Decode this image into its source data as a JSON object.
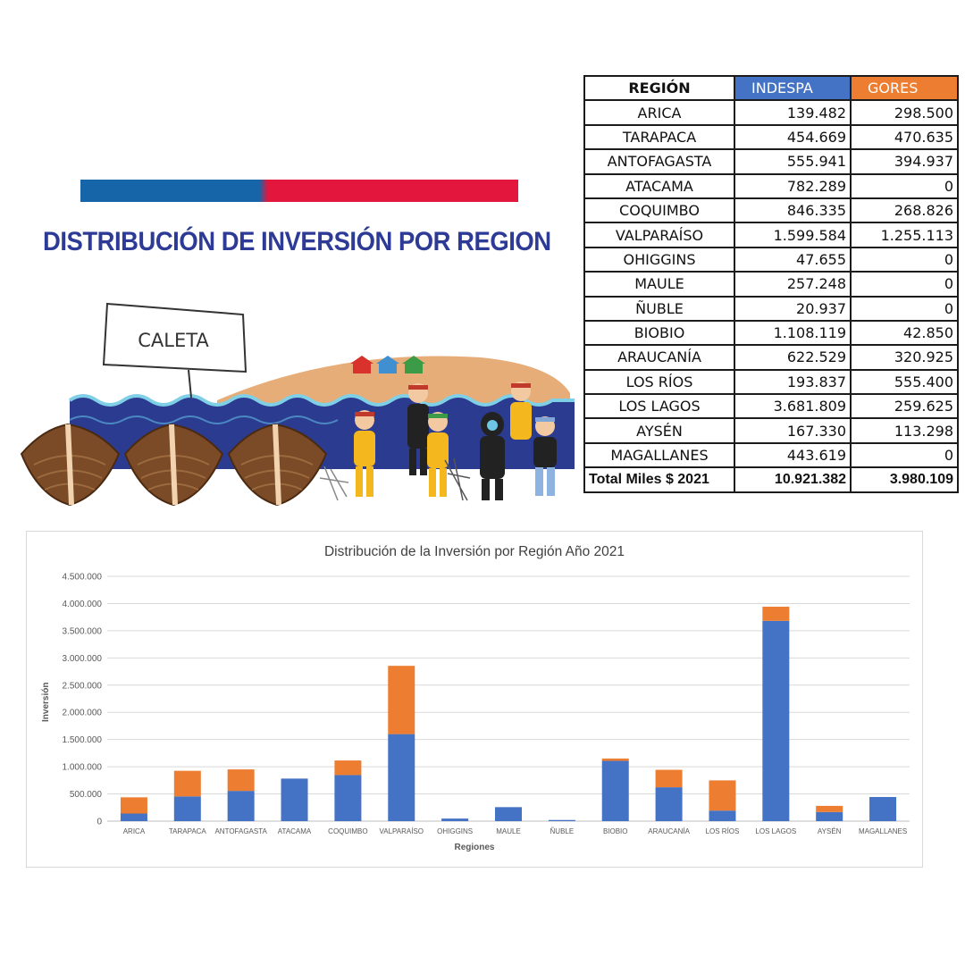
{
  "colors": {
    "flag_blue": "#1565a8",
    "flag_red": "#e3173e",
    "title_blue": "#2e3b96",
    "indespa_header": "#4472c4",
    "gores_header": "#ed7d31",
    "bar_blue": "#4472c4",
    "bar_orange": "#ed7d31"
  },
  "headline": "DISTRIBUCIÓN DE INVERSIÓN POR REGION",
  "illustration": {
    "sign_text": "CALETA"
  },
  "table": {
    "headers": {
      "region": "REGIÓN",
      "indespa": "INDESPA",
      "gores": "GORES"
    },
    "rows": [
      {
        "region": "ARICA",
        "indespa": "139.482",
        "gores": "298.500"
      },
      {
        "region": "TARAPACA",
        "indespa": "454.669",
        "gores": "470.635"
      },
      {
        "region": "ANTOFAGASTA",
        "indespa": "555.941",
        "gores": "394.937"
      },
      {
        "region": "ATACAMA",
        "indespa": "782.289",
        "gores": "0"
      },
      {
        "region": "COQUIMBO",
        "indespa": "846.335",
        "gores": "268.826"
      },
      {
        "region": "VALPARAÍSO",
        "indespa": "1.599.584",
        "gores": "1.255.113"
      },
      {
        "region": "OHIGGINS",
        "indespa": "47.655",
        "gores": "0"
      },
      {
        "region": "MAULE",
        "indespa": "257.248",
        "gores": "0"
      },
      {
        "region": "ÑUBLE",
        "indespa": "20.937",
        "gores": "0"
      },
      {
        "region": "BIOBIO",
        "indespa": "1.108.119",
        "gores": "42.850"
      },
      {
        "region": "ARAUCANÍA",
        "indespa": "622.529",
        "gores": "320.925"
      },
      {
        "region": "LOS RÍOS",
        "indespa": "193.837",
        "gores": "555.400"
      },
      {
        "region": "LOS LAGOS",
        "indespa": "3.681.809",
        "gores": "259.625"
      },
      {
        "region": "AYSÉN",
        "indespa": "167.330",
        "gores": "113.298"
      },
      {
        "region": "MAGALLANES",
        "indespa": "443.619",
        "gores": "0"
      }
    ],
    "total": {
      "label": "Total Miles $ 2021",
      "indespa": "10.921.382",
      "gores": "3.980.109"
    }
  },
  "chart_data": {
    "type": "bar",
    "stacked": true,
    "title": "Distribución de la Inversión por Región Año 2021",
    "xlabel": "Regiones",
    "ylabel": "Inversión",
    "ylim": [
      0,
      4500000
    ],
    "yticks": [
      0,
      500000,
      1000000,
      1500000,
      2000000,
      2500000,
      3000000,
      3500000,
      4000000,
      4500000
    ],
    "ytick_labels": [
      "0",
      "500.000",
      "1.000.000",
      "1.500.000",
      "2.000.000",
      "2.500.000",
      "3.000.000",
      "3.500.000",
      "4.000.000",
      "4.500.000"
    ],
    "grid": true,
    "legend": "none",
    "categories": [
      "ARICA",
      "TARAPACA",
      "ANTOFAGASTA",
      "ATACAMA",
      "COQUIMBO",
      "VALPARAÍSO",
      "OHIGGINS",
      "MAULE",
      "ÑUBLE",
      "BIOBIO",
      "ARAUCANÍA",
      "LOS RÍOS",
      "LOS LAGOS",
      "AYSÉN",
      "MAGALLANES"
    ],
    "series": [
      {
        "name": "INDESPA",
        "color": "#4472c4",
        "values": [
          139482,
          454669,
          555941,
          782289,
          846335,
          1599584,
          47655,
          257248,
          20937,
          1108119,
          622529,
          193837,
          3681809,
          167330,
          443619
        ]
      },
      {
        "name": "GORES",
        "color": "#ed7d31",
        "values": [
          298500,
          470635,
          394937,
          0,
          268826,
          1255113,
          0,
          0,
          0,
          42850,
          320925,
          555400,
          259625,
          113298,
          0
        ]
      }
    ]
  }
}
